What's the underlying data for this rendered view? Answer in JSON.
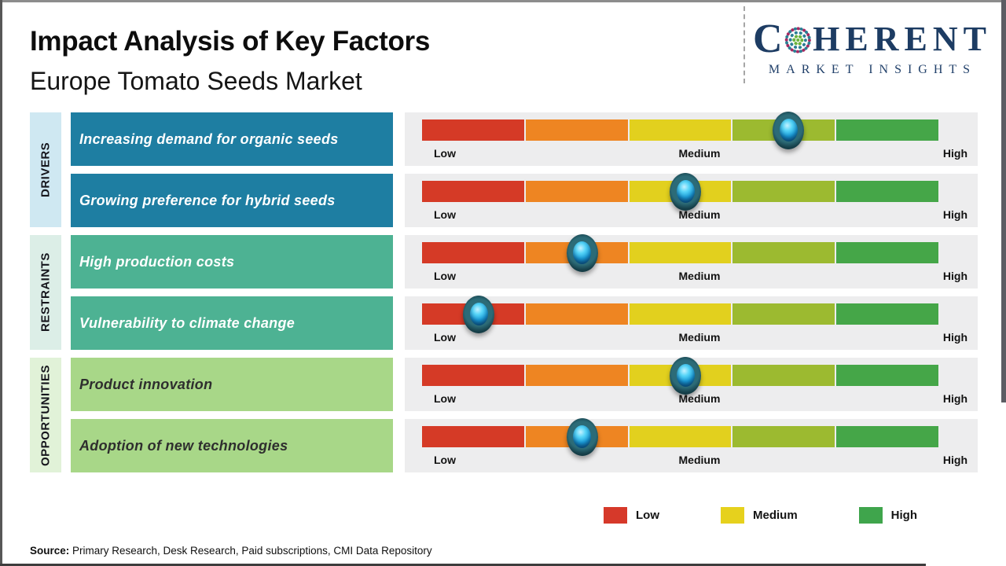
{
  "page": {
    "title": "Impact Analysis of Key Factors",
    "subtitle": "Europe Tomato Seeds Market",
    "source_label": "Source:",
    "source_text": " Primary Research, Desk Research, Paid subscriptions, CMI Data Repository"
  },
  "logo": {
    "word_start": "C",
    "word_end": "HERENT",
    "tagline": "MARKET INSIGHTS",
    "navy": "#1d3c63",
    "globe_green": "#6cb33f",
    "globe_teal": "#2c7f95",
    "globe_magenta": "#a72a62"
  },
  "scale": {
    "low": "Low",
    "medium": "Medium",
    "high": "High",
    "segment_colors": [
      "#d53a26",
      "#ee8522",
      "#e2d01e",
      "#9cba30",
      "#45a648"
    ],
    "panel_color": "#ededee"
  },
  "legend": [
    {
      "label": "Low",
      "color": "#d6392a"
    },
    {
      "label": "Medium",
      "color": "#e6d11d"
    },
    {
      "label": "High",
      "color": "#3fa54c"
    }
  ],
  "groups": [
    {
      "label": "DRIVERS",
      "strip_color": "#cfe8f2",
      "box_color": "#1e7ea2",
      "text_color": "#ffffff",
      "factors": [
        {
          "label": "Increasing demand for organic seeds",
          "impact": 0.71,
          "level": "Medium-High"
        },
        {
          "label": "Growing preference for hybrid seeds",
          "impact": 0.51,
          "level": "Medium"
        }
      ]
    },
    {
      "label": "RESTRAINTS",
      "strip_color": "#dceee7",
      "box_color": "#4db293",
      "text_color": "#ffffff",
      "factors": [
        {
          "label": "High production costs",
          "impact": 0.31,
          "level": "Low-Medium"
        },
        {
          "label": "Vulnerability to climate change",
          "impact": 0.11,
          "level": "Low"
        }
      ]
    },
    {
      "label": "OPPORTUNITIES",
      "strip_color": "#e1f2d8",
      "box_color": "#a8d788",
      "text_color": "#2e2e2e",
      "factors": [
        {
          "label": "Product innovation",
          "impact": 0.51,
          "level": "Medium"
        },
        {
          "label": "Adoption of new technologies",
          "impact": 0.31,
          "level": "Low-Medium"
        }
      ]
    }
  ],
  "chart_data": {
    "type": "scatter",
    "title": "Impact Analysis of Key Factors",
    "subtitle": "Europe Tomato Seeds Market",
    "xlabel": "Impact level",
    "x_ticks": [
      "Low",
      "Medium",
      "High"
    ],
    "x_range": [
      0,
      1
    ],
    "categories": [
      "Increasing demand for organic seeds",
      "Growing preference for hybrid seeds",
      "High production costs",
      "Vulnerability to climate change",
      "Product innovation",
      "Adoption of new technologies"
    ],
    "groups": [
      "Drivers",
      "Drivers",
      "Restraints",
      "Restraints",
      "Opportunities",
      "Opportunities"
    ],
    "values": [
      0.71,
      0.51,
      0.31,
      0.11,
      0.51,
      0.31
    ],
    "levels": [
      "Medium-High",
      "Medium",
      "Low-Medium",
      "Low",
      "Medium",
      "Low-Medium"
    ],
    "legend": [
      "Low",
      "Medium",
      "High"
    ],
    "legend_position": "bottom",
    "grid": false
  }
}
